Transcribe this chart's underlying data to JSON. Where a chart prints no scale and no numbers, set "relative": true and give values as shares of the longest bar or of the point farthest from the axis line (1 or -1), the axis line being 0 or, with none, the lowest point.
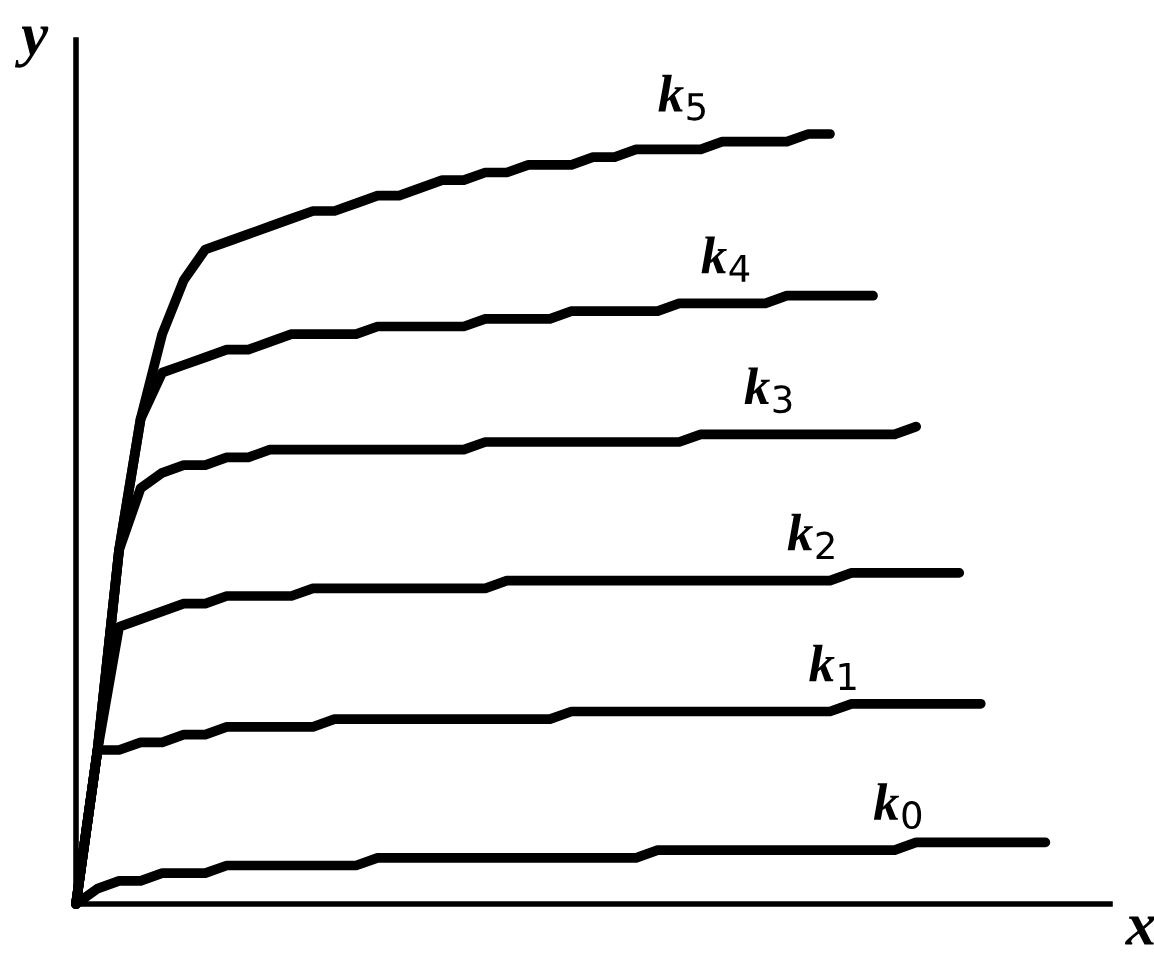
{
  "chart_data": {
    "type": "line",
    "relative": true,
    "xlabel": "x",
    "ylabel": "y",
    "marker": "none",
    "line_style": "solid",
    "categories": [
      null,
      null,
      null,
      null,
      null,
      null,
      null,
      null,
      null,
      null,
      null,
      null,
      null,
      null,
      null,
      null,
      null,
      null,
      null,
      null,
      null,
      null,
      null,
      null,
      null,
      null,
      null,
      null,
      null,
      null,
      null,
      null,
      null,
      null,
      null,
      null,
      null,
      null,
      null,
      null,
      null,
      null,
      null,
      null,
      null,
      null,
      null,
      null,
      null
    ],
    "series": [
      {
        "name": "k$_{0}$",
        "color": "#000000",
        "values": [
          0,
          0.02,
          0.03,
          0.03,
          0.04,
          0.04,
          0.04,
          0.05,
          0.05,
          0.05,
          0.05,
          0.05,
          0.05,
          0.05,
          0.06,
          0.06,
          0.06,
          0.06,
          0.06,
          0.06,
          0.06,
          0.06,
          0.06,
          0.06,
          0.06,
          0.06,
          0.06,
          0.07,
          0.07,
          0.07,
          0.07,
          0.07,
          0.07,
          0.07,
          0.07,
          0.07,
          0.07,
          0.07,
          0.07,
          0.08,
          0.08,
          0.08,
          0.08,
          0.08,
          0.08,
          0.08,
          null,
          null,
          null
        ]
      },
      {
        "name": "k$_{1}$",
        "color": "#000000",
        "values": [
          0,
          0.2,
          0.2,
          0.21,
          0.21,
          0.22,
          0.22,
          0.23,
          0.23,
          0.23,
          0.23,
          0.23,
          0.24,
          0.24,
          0.24,
          0.24,
          0.24,
          0.24,
          0.24,
          0.24,
          0.24,
          0.24,
          0.24,
          0.25,
          0.25,
          0.25,
          0.25,
          0.25,
          0.25,
          0.25,
          0.25,
          0.25,
          0.25,
          0.25,
          0.25,
          0.25,
          0.26,
          0.26,
          0.26,
          0.26,
          0.26,
          0.26,
          0.26,
          null,
          null,
          null,
          null,
          null,
          null
        ]
      },
      {
        "name": "k$_{2}$",
        "color": "#000000",
        "values": [
          0,
          0.2,
          0.36,
          0.37,
          0.38,
          0.39,
          0.39,
          0.4,
          0.4,
          0.4,
          0.4,
          0.41,
          0.41,
          0.41,
          0.41,
          0.41,
          0.41,
          0.41,
          0.41,
          0.41,
          0.42,
          0.42,
          0.42,
          0.42,
          0.42,
          0.42,
          0.42,
          0.42,
          0.42,
          0.42,
          0.42,
          0.42,
          0.42,
          0.42,
          0.42,
          0.42,
          0.43,
          0.43,
          0.43,
          0.43,
          0.43,
          0.43,
          null,
          null,
          null,
          null,
          null,
          null,
          null
        ]
      },
      {
        "name": "k$_{3}$",
        "color": "#000000",
        "values": [
          0,
          0.2,
          0.46,
          0.54,
          0.56,
          0.57,
          0.57,
          0.58,
          0.58,
          0.59,
          0.59,
          0.59,
          0.59,
          0.59,
          0.59,
          0.59,
          0.59,
          0.59,
          0.59,
          0.6,
          0.6,
          0.6,
          0.6,
          0.6,
          0.6,
          0.6,
          0.6,
          0.6,
          0.6,
          0.61,
          0.61,
          0.61,
          0.61,
          0.61,
          0.61,
          0.61,
          0.61,
          0.61,
          0.61,
          0.62,
          null,
          null,
          null,
          null,
          null,
          null,
          null,
          null,
          null
        ]
      },
      {
        "name": "k$_{4}$",
        "color": "#000000",
        "values": [
          0,
          0.2,
          0.46,
          0.63,
          0.69,
          0.7,
          0.71,
          0.72,
          0.72,
          0.73,
          0.74,
          0.74,
          0.74,
          0.74,
          0.75,
          0.75,
          0.75,
          0.75,
          0.75,
          0.76,
          0.76,
          0.76,
          0.76,
          0.77,
          0.77,
          0.77,
          0.77,
          0.77,
          0.78,
          0.78,
          0.78,
          0.78,
          0.78,
          0.79,
          0.79,
          0.79,
          0.79,
          0.79,
          null,
          null,
          null,
          null,
          null,
          null,
          null,
          null,
          null,
          null,
          null
        ]
      },
      {
        "name": "k$_{5}$",
        "color": "#000000",
        "values": [
          0,
          0.2,
          0.46,
          0.63,
          0.74,
          0.81,
          0.85,
          0.86,
          0.87,
          0.88,
          0.89,
          0.9,
          0.9,
          0.91,
          0.92,
          0.92,
          0.93,
          0.94,
          0.94,
          0.95,
          0.95,
          0.96,
          0.96,
          0.96,
          0.97,
          0.97,
          0.98,
          0.98,
          0.98,
          0.98,
          0.99,
          0.99,
          0.99,
          0.99,
          1,
          1,
          null,
          null,
          null,
          null,
          null,
          null,
          null,
          null,
          null,
          null,
          null,
          null,
          null
        ]
      }
    ]
  }
}
